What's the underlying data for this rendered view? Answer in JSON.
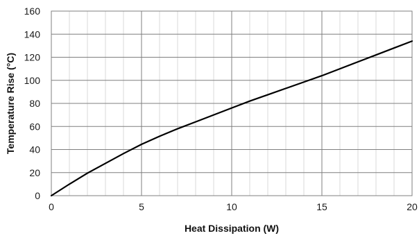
{
  "chart_data": {
    "type": "line",
    "title": "",
    "xlabel": "Heat Dissipation (W)",
    "ylabel": "Temperature Rise (°C)",
    "xlim": [
      0,
      20
    ],
    "ylim": [
      0,
      160
    ],
    "x_ticks": [
      "0",
      "5",
      "10",
      "15",
      "20"
    ],
    "y_ticks": [
      "0",
      "20",
      "40",
      "60",
      "80",
      "100",
      "120",
      "140",
      "160"
    ],
    "grid": {
      "major": true,
      "minor_vertical": true,
      "major_color": "#7f7f7f",
      "minor_color": "#d9d9d9"
    },
    "series": [
      {
        "color": "#000000",
        "x": [
          0,
          1,
          2,
          3,
          4,
          5,
          6,
          7,
          8,
          9,
          10,
          11,
          12,
          13,
          14,
          15,
          16,
          17,
          18,
          19,
          20
        ],
        "y": [
          0,
          10,
          19.5,
          28,
          36.5,
          44.5,
          51.5,
          58,
          64,
          70,
          76,
          82,
          87.5,
          93,
          98.5,
          104,
          110,
          116,
          122,
          128,
          134
        ]
      }
    ]
  }
}
